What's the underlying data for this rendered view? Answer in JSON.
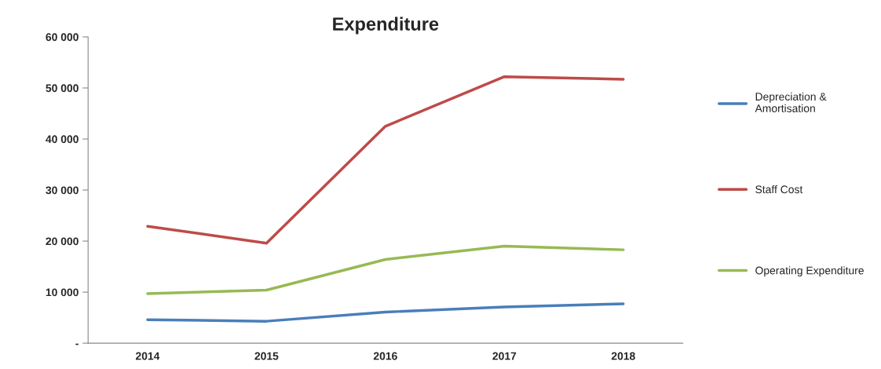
{
  "chart_data": {
    "type": "line",
    "title": "Expenditure",
    "categories": [
      "2014",
      "2015",
      "2016",
      "2017",
      "2018"
    ],
    "series": [
      {
        "name": "Depreciation &\nAmortisation",
        "color": "#4a7ebb",
        "values": [
          4600,
          4300,
          6100,
          7100,
          7700
        ]
      },
      {
        "name": "Staff Cost",
        "color": "#be4b48",
        "values": [
          22900,
          19600,
          42500,
          52200,
          51700
        ]
      },
      {
        "name": "Operating Expenditure",
        "color": "#98b954",
        "values": [
          9700,
          10400,
          16400,
          19000,
          18300
        ]
      }
    ],
    "ylim": [
      0,
      60000
    ],
    "yticks": [
      {
        "value": 0,
        "label": "-"
      },
      {
        "value": 10000,
        "label": "10 000"
      },
      {
        "value": 20000,
        "label": "20 000"
      },
      {
        "value": 30000,
        "label": "30 000"
      },
      {
        "value": 40000,
        "label": "40 000"
      },
      {
        "value": 50000,
        "label": "50 000"
      },
      {
        "value": 60000,
        "label": "60 000"
      }
    ],
    "grid": false,
    "legend": "right",
    "marker": "none",
    "line_style": "solid"
  }
}
